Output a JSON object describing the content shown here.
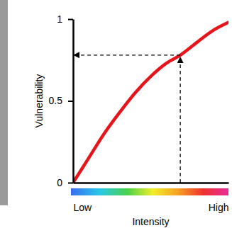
{
  "chart_data": {
    "type": "line",
    "x_label": "Intensity",
    "y_label": "Vulnerability",
    "x": [
      0,
      0.1,
      0.2,
      0.3,
      0.4,
      0.5,
      0.6,
      0.69,
      0.8,
      0.9,
      1.0
    ],
    "values": [
      0,
      0.15,
      0.3,
      0.43,
      0.55,
      0.65,
      0.73,
      0.78,
      0.86,
      0.93,
      0.98
    ],
    "color": "#e8141b",
    "xlim": [
      0,
      1
    ],
    "ylim": [
      0,
      1
    ],
    "xticks": [
      {
        "value": 0,
        "label": "Low"
      },
      {
        "value": 1,
        "label": "High"
      }
    ],
    "yticks": [
      0,
      0.5,
      1
    ],
    "reference_point": {
      "x": 0.69,
      "y": 0.78
    }
  }
}
